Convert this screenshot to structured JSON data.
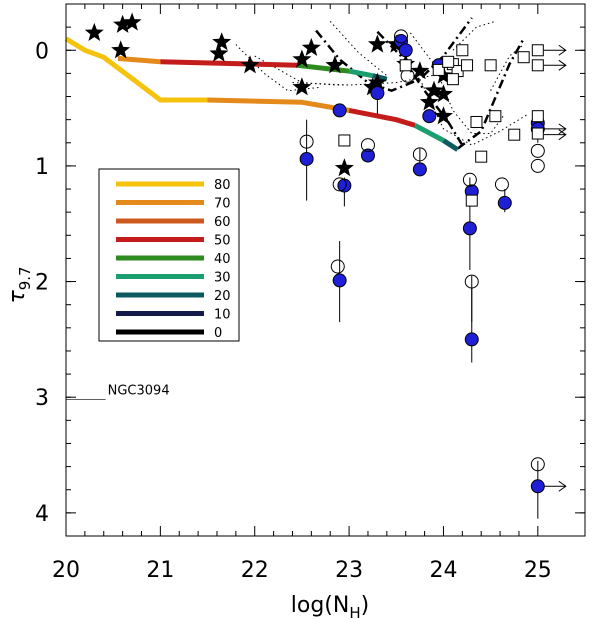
{
  "chart_data": {
    "type": "scatter",
    "xlabel": "log(N",
    "xlabel_sub": "H",
    "xlabel_close": ")",
    "ylabel": "τ",
    "ylabel_sub": "9.7",
    "xlim": [
      20,
      25.5
    ],
    "ylim": [
      4.2,
      -0.4
    ],
    "x_ticks": [
      20,
      21,
      22,
      23,
      24,
      25
    ],
    "x_tick_labels": [
      "20",
      "21",
      "22",
      "23",
      "24",
      "25"
    ],
    "y_ticks": [
      0,
      1,
      2,
      3,
      4
    ],
    "y_tick_labels": [
      "0",
      "1",
      "2",
      "3",
      "4"
    ],
    "annotation": {
      "text": "NGC3094",
      "x": 20.0,
      "y": 3.02,
      "line_to_x": 20.42
    },
    "legend": {
      "placement": "middle-left",
      "entries": [
        {
          "label": "80",
          "color": "#f5c20c"
        },
        {
          "label": "70",
          "color": "#e48a1b"
        },
        {
          "label": "60",
          "color": "#cc5a1e"
        },
        {
          "label": "50",
          "color": "#c41b1b"
        },
        {
          "label": "40",
          "color": "#2e8b20"
        },
        {
          "label": "30",
          "color": "#1b9e6e"
        },
        {
          "label": "20",
          "color": "#0b5a5e"
        },
        {
          "label": "10",
          "color": "#141a4a"
        },
        {
          "label": "0",
          "color": "#000000"
        }
      ]
    },
    "model_tracks": [
      {
        "name": "upper-track",
        "segments": [
          {
            "color": "#e48a1b",
            "points": [
              [
                20.55,
                0.07
              ],
              [
                21.0,
                0.1
              ]
            ]
          },
          {
            "color": "#c41b1b",
            "points": [
              [
                21.0,
                0.1
              ],
              [
                22.0,
                0.12
              ],
              [
                22.45,
                0.13
              ]
            ]
          },
          {
            "color": "#2e8b20",
            "points": [
              [
                22.45,
                0.13
              ],
              [
                23.0,
                0.18
              ]
            ]
          },
          {
            "color": "#1b9e6e",
            "points": [
              [
                23.0,
                0.18
              ],
              [
                23.25,
                0.22
              ]
            ]
          },
          {
            "color": "#0b5a5e",
            "points": [
              [
                23.25,
                0.22
              ],
              [
                23.4,
                0.25
              ]
            ]
          }
        ]
      },
      {
        "name": "lower-track",
        "segments": [
          {
            "color": "#f5c20c",
            "points": [
              [
                20.0,
                -0.1
              ],
              [
                20.2,
                0.0
              ],
              [
                20.4,
                0.06
              ],
              [
                21.0,
                0.43
              ],
              [
                21.5,
                0.43
              ]
            ]
          },
          {
            "color": "#e48a1b",
            "points": [
              [
                21.5,
                0.43
              ],
              [
                22.5,
                0.45
              ],
              [
                23.0,
                0.52
              ]
            ]
          },
          {
            "color": "#c41b1b",
            "points": [
              [
                23.0,
                0.52
              ],
              [
                23.5,
                0.6
              ],
              [
                23.7,
                0.65
              ]
            ]
          },
          {
            "color": "#1b9e6e",
            "points": [
              [
                23.7,
                0.65
              ],
              [
                24.0,
                0.78
              ]
            ]
          },
          {
            "color": "#0b5a5e",
            "points": [
              [
                24.0,
                0.78
              ],
              [
                24.15,
                0.86
              ]
            ]
          }
        ]
      }
    ],
    "dashdot_curves": [
      [
        [
          22.65,
          -0.17
        ],
        [
          22.9,
          0.08
        ],
        [
          23.2,
          0.28
        ],
        [
          23.45,
          0.35
        ],
        [
          23.75,
          0.25
        ],
        [
          24.0,
          0.05
        ],
        [
          24.3,
          -0.28
        ]
      ],
      [
        [
          23.3,
          -0.16
        ],
        [
          23.55,
          0.05
        ],
        [
          23.8,
          0.35
        ],
        [
          24.05,
          0.62
        ],
        [
          24.2,
          0.82
        ]
      ],
      [
        [
          24.15,
          0.85
        ],
        [
          24.4,
          0.7
        ],
        [
          24.7,
          0.12
        ],
        [
          24.85,
          -0.1
        ]
      ]
    ],
    "dotted_curves": [
      [
        [
          21.8,
          -0.05
        ],
        [
          22.1,
          0.2
        ],
        [
          22.35,
          0.35
        ],
        [
          22.7,
          0.32
        ]
      ],
      [
        [
          22.0,
          0.05
        ],
        [
          22.5,
          0.28
        ],
        [
          22.85,
          0.3
        ],
        [
          23.0,
          0.3
        ]
      ],
      [
        [
          22.4,
          0.28
        ],
        [
          23.0,
          0.3
        ],
        [
          23.5,
          0.28
        ],
        [
          24.0,
          0.2
        ]
      ],
      [
        [
          22.8,
          -0.25
        ],
        [
          23.1,
          0.02
        ],
        [
          23.4,
          0.22
        ]
      ],
      [
        [
          23.65,
          -0.15
        ],
        [
          23.9,
          0.12
        ],
        [
          24.1,
          0.52
        ],
        [
          24.3,
          0.72
        ],
        [
          24.5,
          0.72
        ],
        [
          24.65,
          0.55
        ]
      ],
      [
        [
          23.75,
          0.25
        ],
        [
          24.0,
          0.68
        ],
        [
          24.3,
          0.82
        ],
        [
          24.6,
          0.7
        ],
        [
          24.9,
          0.55
        ]
      ],
      [
        [
          24.1,
          0.0
        ],
        [
          24.35,
          -0.2
        ],
        [
          24.55,
          -0.25
        ]
      ],
      [
        [
          24.5,
          0.35
        ],
        [
          24.7,
          0.05
        ],
        [
          24.85,
          -0.05
        ]
      ]
    ],
    "series": [
      {
        "name": "stars",
        "marker": "star",
        "points": [
          [
            20.3,
            -0.15
          ],
          [
            20.6,
            -0.22
          ],
          [
            20.7,
            -0.24
          ],
          [
            20.58,
            0.0
          ],
          [
            21.65,
            -0.07
          ],
          [
            21.62,
            0.03
          ],
          [
            21.95,
            0.13
          ],
          [
            22.5,
            0.08
          ],
          [
            22.6,
            -0.02
          ],
          [
            22.5,
            0.32
          ],
          [
            22.85,
            0.13
          ],
          [
            23.3,
            0.28
          ],
          [
            23.25,
            0.32
          ],
          [
            22.95,
            1.02
          ],
          [
            23.3,
            -0.05
          ],
          [
            23.5,
            -0.05
          ],
          [
            23.6,
            0.12
          ],
          [
            23.75,
            0.18
          ],
          [
            23.85,
            0.45
          ],
          [
            23.9,
            0.35
          ],
          [
            24.0,
            0.22
          ],
          [
            24.0,
            0.38
          ],
          [
            24.0,
            0.57
          ]
        ]
      },
      {
        "name": "blue-filled",
        "marker": "filled-circle",
        "color": "#1f1fd6",
        "points": [
          [
            22.55,
            0.94
          ],
          [
            22.9,
            0.52
          ],
          [
            22.95,
            1.17
          ],
          [
            22.9,
            1.99
          ],
          [
            23.2,
            0.91
          ],
          [
            23.3,
            0.37
          ],
          [
            23.55,
            -0.08
          ],
          [
            23.6,
            0.0
          ],
          [
            23.75,
            1.03
          ],
          [
            23.85,
            0.57
          ],
          [
            23.95,
            0.13
          ],
          [
            24.3,
            1.22
          ],
          [
            24.28,
            1.54
          ],
          [
            24.3,
            2.5
          ],
          [
            24.65,
            1.32
          ],
          [
            25.0,
            0.63
          ],
          [
            25.0,
            0.68
          ],
          [
            25.0,
            3.77
          ]
        ]
      },
      {
        "name": "open-circles",
        "marker": "open-circle",
        "points": [
          [
            22.55,
            0.79
          ],
          [
            22.9,
            1.16
          ],
          [
            22.88,
            1.87
          ],
          [
            23.2,
            0.82
          ],
          [
            23.55,
            -0.12
          ],
          [
            23.62,
            0.22
          ],
          [
            23.75,
            0.9
          ],
          [
            24.28,
            1.12
          ],
          [
            24.3,
            2.0
          ],
          [
            24.62,
            1.16
          ],
          [
            25.0,
            0.87
          ],
          [
            25.0,
            1.0
          ],
          [
            25.0,
            3.58
          ]
        ]
      },
      {
        "name": "open-squares",
        "marker": "open-square",
        "points": [
          [
            22.95,
            0.78
          ],
          [
            23.6,
            0.13
          ],
          [
            23.95,
            0.17
          ],
          [
            24.1,
            0.12
          ],
          [
            24.15,
            0.18
          ],
          [
            24.2,
            0.0
          ],
          [
            24.25,
            0.13
          ],
          [
            24.35,
            0.62
          ],
          [
            24.4,
            0.92
          ],
          [
            24.5,
            0.13
          ],
          [
            24.55,
            0.57
          ],
          [
            24.75,
            0.73
          ],
          [
            24.85,
            0.06
          ],
          [
            25.0,
            0.0
          ],
          [
            25.0,
            0.13
          ],
          [
            25.0,
            0.57
          ],
          [
            25.0,
            0.72
          ],
          [
            24.05,
            0.1
          ],
          [
            24.1,
            0.25
          ],
          [
            24.3,
            1.3
          ]
        ]
      }
    ],
    "upper_limit_arrows": [
      [
        25.0,
        0.0
      ],
      [
        25.0,
        0.13
      ],
      [
        25.0,
        0.68
      ],
      [
        25.0,
        0.73
      ],
      [
        25.0,
        3.77
      ]
    ],
    "error_bars": [
      [
        22.55,
        0.6,
        1.3
      ],
      [
        22.95,
        1.1,
        1.35
      ],
      [
        22.9,
        1.65,
        2.35
      ],
      [
        23.3,
        0.3,
        0.55
      ],
      [
        24.28,
        1.1,
        1.9
      ],
      [
        24.3,
        2.05,
        2.7
      ],
      [
        24.65,
        1.2,
        1.4
      ],
      [
        25.0,
        0.55,
        0.8
      ],
      [
        25.0,
        3.55,
        4.05
      ],
      [
        23.75,
        0.85,
        1.08
      ],
      [
        24.3,
        1.95,
        2.35
      ]
    ]
  }
}
